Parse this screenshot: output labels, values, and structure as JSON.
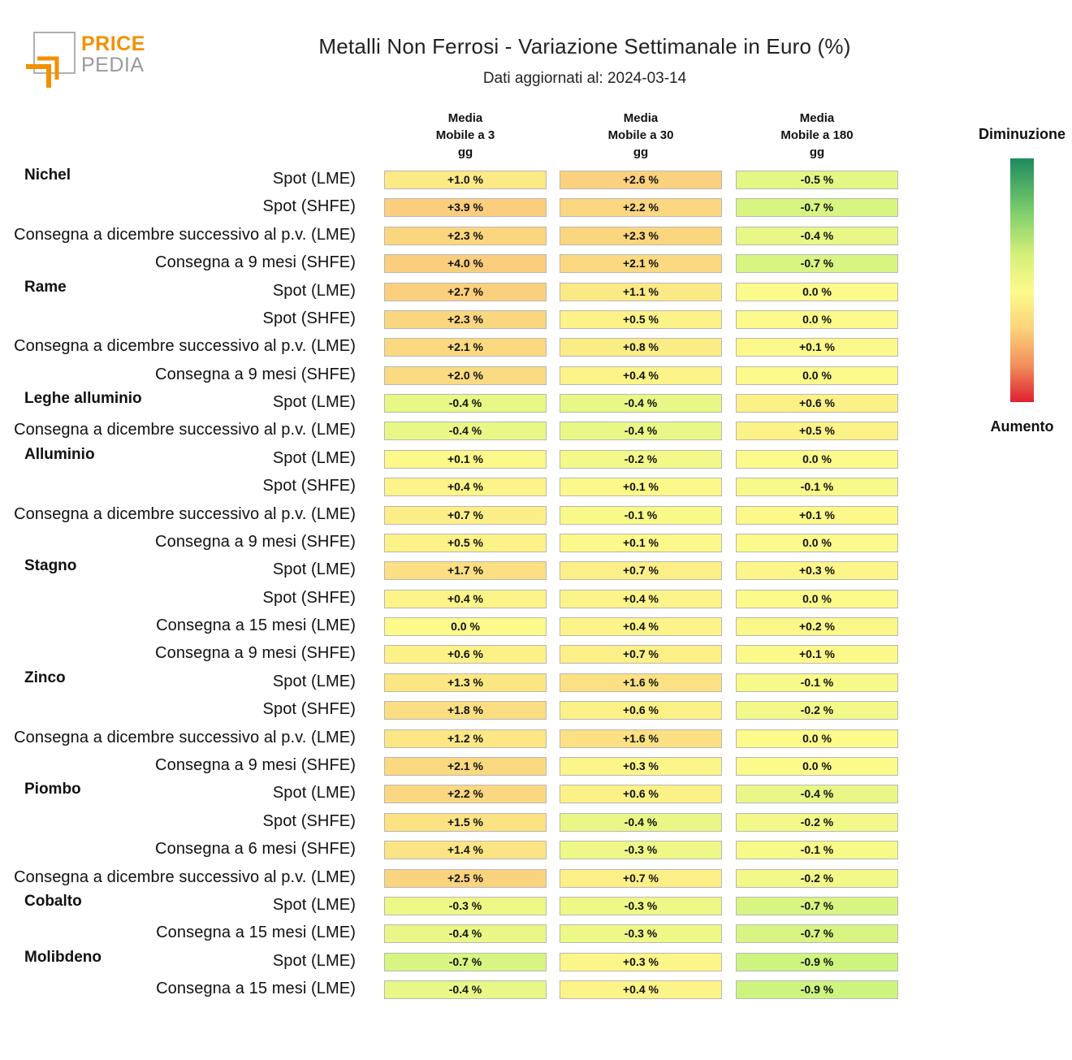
{
  "logo": {
    "word1": "PRICE",
    "word2": "PEDIA"
  },
  "title": "Metalli Non Ferrosi - Variazione Settimanale in Euro (%)",
  "subtitle": "Dati aggiornati al: 2024-03-14",
  "columns": [
    "Media\nMobile a 3\ngg",
    "Media\nMobile a 30\ngg",
    "Media\nMobile a 180\ngg"
  ],
  "legend": {
    "top": "Diminuzione",
    "bottom": "Aumento",
    "colors": [
      "#1d8a5e",
      "#7ece6c",
      "#d7f07a",
      "#fcfa8a",
      "#fbd27a",
      "#f28e5c",
      "#de2030"
    ]
  },
  "chart_data": {
    "type": "table",
    "title": "Metalli Non Ferrosi - Variazione Settimanale in Euro (%)",
    "columns": [
      "Media Mobile a 3 gg",
      "Media Mobile a 30 gg",
      "Media Mobile a 180 gg"
    ],
    "groups": [
      {
        "name": "Nichel",
        "rows": [
          {
            "label": "Spot (LME)",
            "values": [
              "+1.0 %",
              "+2.6 %",
              "-0.5 %"
            ]
          },
          {
            "label": "Spot (SHFE)",
            "values": [
              "+3.9 %",
              "+2.2 %",
              "-0.7 %"
            ]
          },
          {
            "label": "Consegna a dicembre successivo al p.v. (LME)",
            "values": [
              "+2.3 %",
              "+2.3 %",
              "-0.4 %"
            ]
          },
          {
            "label": "Consegna a 9 mesi (SHFE)",
            "values": [
              "+4.0 %",
              "+2.1 %",
              "-0.7 %"
            ]
          }
        ]
      },
      {
        "name": "Rame",
        "rows": [
          {
            "label": "Spot (LME)",
            "values": [
              "+2.7 %",
              "+1.1 %",
              "0.0 %"
            ]
          },
          {
            "label": "Spot (SHFE)",
            "values": [
              "+2.3 %",
              "+0.5 %",
              "0.0 %"
            ]
          },
          {
            "label": "Consegna a dicembre successivo al p.v. (LME)",
            "values": [
              "+2.1 %",
              "+0.8 %",
              "+0.1 %"
            ]
          },
          {
            "label": "Consegna a 9 mesi (SHFE)",
            "values": [
              "+2.0 %",
              "+0.4 %",
              "0.0 %"
            ]
          }
        ]
      },
      {
        "name": "Leghe alluminio",
        "rows": [
          {
            "label": "Spot (LME)",
            "values": [
              "-0.4 %",
              "-0.4 %",
              "+0.6 %"
            ]
          },
          {
            "label": "Consegna a dicembre successivo al p.v. (LME)",
            "values": [
              "-0.4 %",
              "-0.4 %",
              "+0.5 %"
            ]
          }
        ]
      },
      {
        "name": "Alluminio",
        "rows": [
          {
            "label": "Spot (LME)",
            "values": [
              "+0.1 %",
              "-0.2 %",
              "0.0 %"
            ]
          },
          {
            "label": "Spot (SHFE)",
            "values": [
              "+0.4 %",
              "+0.1 %",
              "-0.1 %"
            ]
          },
          {
            "label": "Consegna a dicembre successivo al p.v. (LME)",
            "values": [
              "+0.7 %",
              "-0.1 %",
              "+0.1 %"
            ]
          },
          {
            "label": "Consegna a 9 mesi (SHFE)",
            "values": [
              "+0.5 %",
              "+0.1 %",
              "0.0 %"
            ]
          }
        ]
      },
      {
        "name": "Stagno",
        "rows": [
          {
            "label": "Spot (LME)",
            "values": [
              "+1.7 %",
              "+0.7 %",
              "+0.3 %"
            ]
          },
          {
            "label": "Spot (SHFE)",
            "values": [
              "+0.4 %",
              "+0.4 %",
              "0.0 %"
            ]
          },
          {
            "label": "Consegna a 15 mesi (LME)",
            "values": [
              "0.0 %",
              "+0.4 %",
              "+0.2 %"
            ]
          },
          {
            "label": "Consegna a 9 mesi (SHFE)",
            "values": [
              "+0.6 %",
              "+0.7 %",
              "+0.1 %"
            ]
          }
        ]
      },
      {
        "name": "Zinco",
        "rows": [
          {
            "label": "Spot (LME)",
            "values": [
              "+1.3 %",
              "+1.6 %",
              "-0.1 %"
            ]
          },
          {
            "label": "Spot (SHFE)",
            "values": [
              "+1.8 %",
              "+0.6 %",
              "-0.2 %"
            ]
          },
          {
            "label": "Consegna a dicembre successivo al p.v. (LME)",
            "values": [
              "+1.2 %",
              "+1.6 %",
              "0.0 %"
            ]
          },
          {
            "label": "Consegna a 9 mesi (SHFE)",
            "values": [
              "+2.1 %",
              "+0.3 %",
              "0.0 %"
            ]
          }
        ]
      },
      {
        "name": "Piombo",
        "rows": [
          {
            "label": "Spot (LME)",
            "values": [
              "+2.2 %",
              "+0.6 %",
              "-0.4 %"
            ]
          },
          {
            "label": "Spot (SHFE)",
            "values": [
              "+1.5 %",
              "-0.4 %",
              "-0.2 %"
            ]
          },
          {
            "label": "Consegna a 6 mesi (SHFE)",
            "values": [
              "+1.4 %",
              "-0.3 %",
              "-0.1 %"
            ]
          },
          {
            "label": "Consegna a dicembre successivo al p.v. (LME)",
            "values": [
              "+2.5 %",
              "+0.7 %",
              "-0.2 %"
            ]
          }
        ]
      },
      {
        "name": "Cobalto",
        "rows": [
          {
            "label": "Spot (LME)",
            "values": [
              "-0.3 %",
              "-0.3 %",
              "-0.7 %"
            ]
          },
          {
            "label": "Consegna a 15 mesi (LME)",
            "values": [
              "-0.4 %",
              "-0.3 %",
              "-0.7 %"
            ]
          }
        ]
      },
      {
        "name": "Molibdeno",
        "rows": [
          {
            "label": "Spot (LME)",
            "values": [
              "-0.7 %",
              "+0.3 %",
              "-0.9 %"
            ]
          },
          {
            "label": "Consegna a 15 mesi (LME)",
            "values": [
              "-0.4 %",
              "+0.4 %",
              "-0.9 %"
            ]
          }
        ]
      }
    ]
  }
}
